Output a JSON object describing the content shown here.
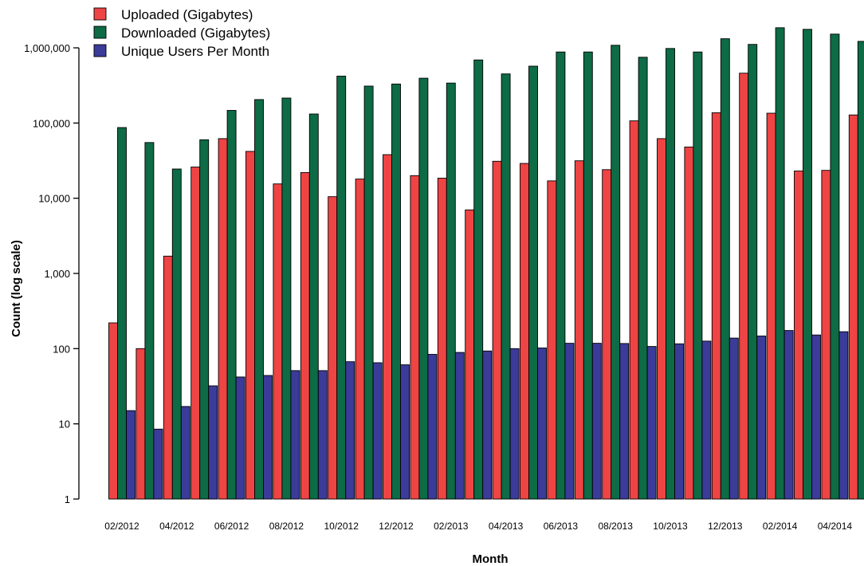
{
  "chart_data": {
    "type": "bar",
    "log_scale": true,
    "xlabel": "Month",
    "ylabel": "Count (log scale)",
    "ylim": [
      1,
      2000000
    ],
    "y_ticks": [
      1,
      10,
      100,
      1000,
      10000,
      100000,
      1000000
    ],
    "y_tick_labels": [
      "1",
      "10",
      "100",
      "1,000",
      "10,000",
      "100,000",
      "1,000,000"
    ],
    "legend_position": "top-left",
    "categories": [
      "02/2012",
      "03/2012",
      "04/2012",
      "05/2012",
      "06/2012",
      "07/2012",
      "08/2012",
      "09/2012",
      "10/2012",
      "11/2012",
      "12/2012",
      "01/2013",
      "02/2013",
      "03/2013",
      "04/2013",
      "05/2013",
      "06/2013",
      "07/2013",
      "08/2013",
      "09/2013",
      "10/2013",
      "11/2013",
      "12/2013",
      "01/2014",
      "02/2014",
      "03/2014",
      "04/2014",
      "05/2014"
    ],
    "category_labels": [
      "02/2012",
      "",
      "04/2012",
      "",
      "06/2012",
      "",
      "08/2012",
      "",
      "10/2012",
      "",
      "12/2012",
      "",
      "02/2013",
      "",
      "04/2013",
      "",
      "06/2013",
      "",
      "08/2013",
      "",
      "10/2013",
      "",
      "12/2013",
      "",
      "02/2014",
      "",
      "04/2014",
      ""
    ],
    "series": [
      {
        "name": "Uploaded (Gigabytes)",
        "color": "#ee4444",
        "values": [
          220,
          100,
          1700,
          26000,
          62000,
          42000,
          15500,
          22000,
          10500,
          18000,
          38000,
          20000,
          18500,
          7000,
          31000,
          29000,
          17000,
          31500,
          24000,
          107000,
          62000,
          48000,
          137000,
          460000,
          135000,
          23000,
          23500,
          128000
        ]
      },
      {
        "name": "Downloaded (Gigabytes)",
        "color": "#0d6b46",
        "values": [
          87000,
          55000,
          24500,
          60000,
          147000,
          205000,
          215000,
          132000,
          420000,
          310000,
          330000,
          395000,
          340000,
          690000,
          450000,
          570000,
          880000,
          880000,
          1080000,
          750000,
          980000,
          880000,
          1320000,
          1110000,
          1850000,
          1760000,
          1520000,
          1220000
        ]
      },
      {
        "name": "Unique Users Per Month",
        "color": "#3b3b99",
        "values": [
          15,
          8.5,
          17,
          32,
          42,
          44,
          51,
          51,
          67,
          65,
          61,
          84,
          89,
          93,
          100,
          102,
          118,
          118,
          117,
          107,
          116,
          126,
          138,
          147,
          174,
          152,
          168,
          null
        ]
      }
    ]
  }
}
